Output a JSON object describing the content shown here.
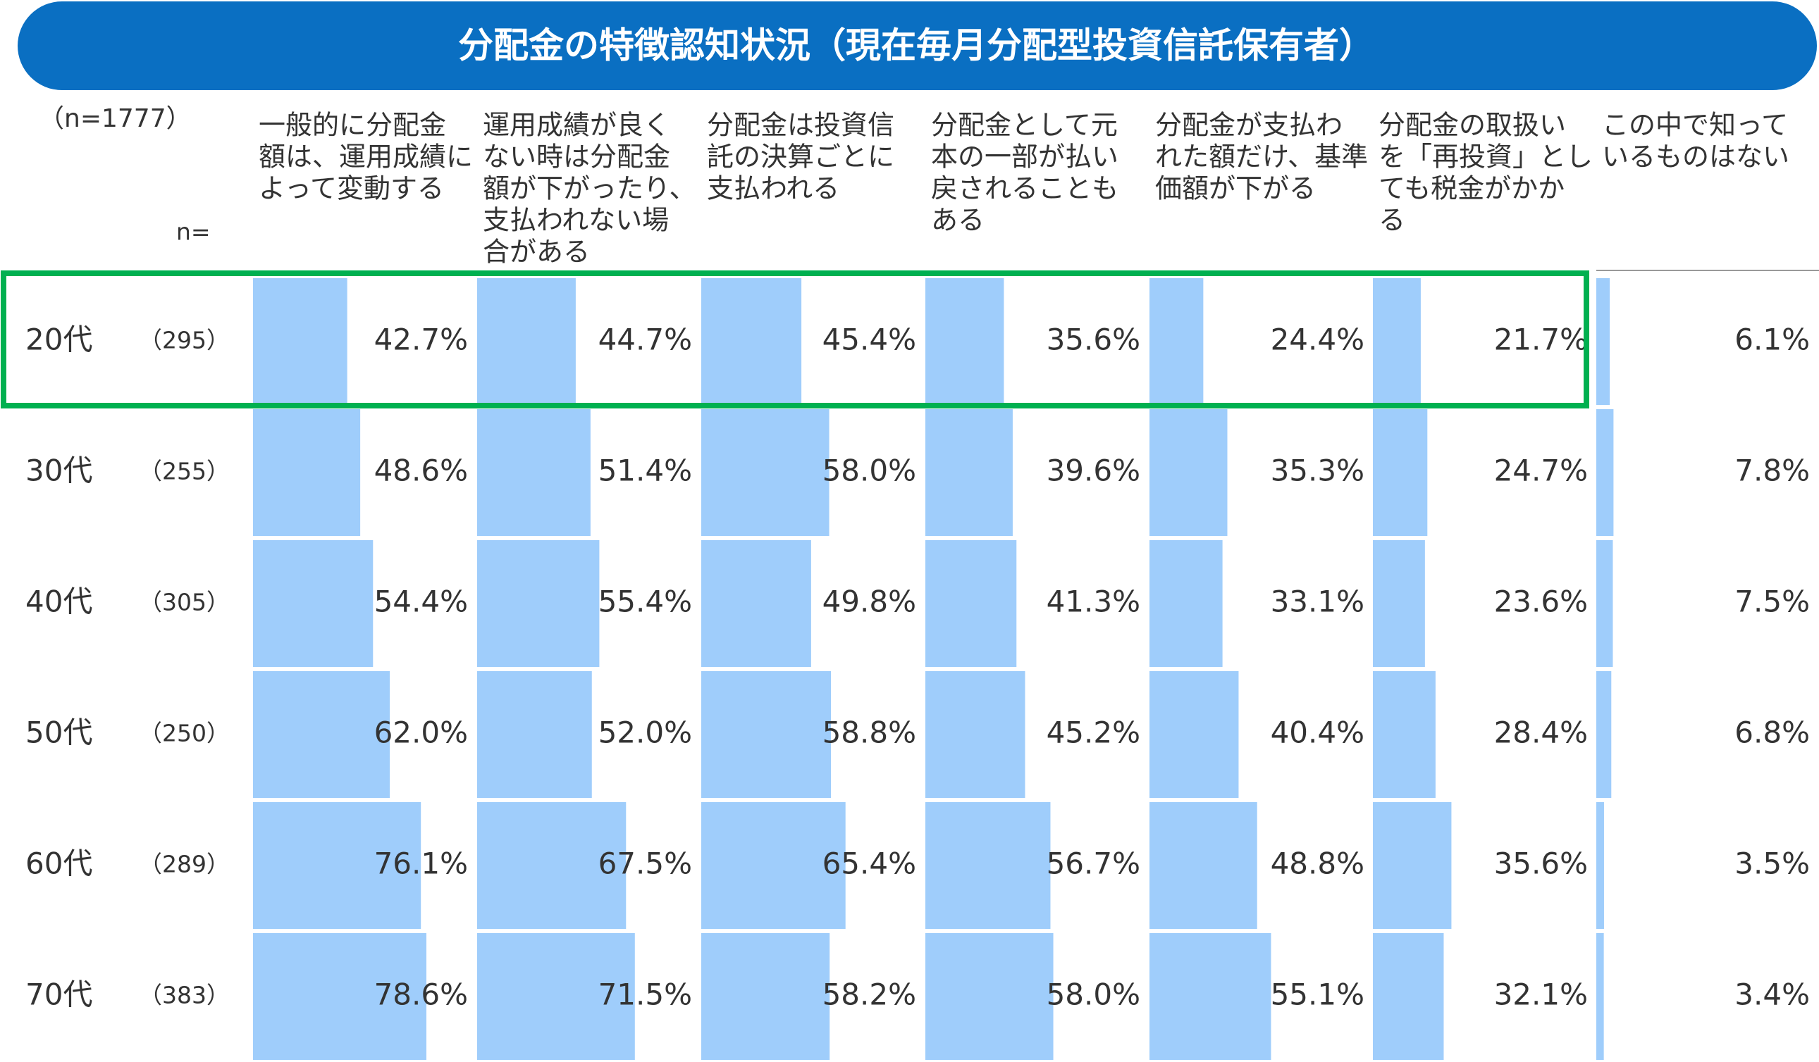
{
  "chart_data": {
    "type": "table-bar",
    "title": "分配金の特徴認知状況（現在毎月分配型投資信託保有者）",
    "sample": "（n=1777）",
    "n_header": "n=",
    "categories": [
      "20代",
      "30代",
      "40代",
      "50代",
      "60代",
      "70代"
    ],
    "n_labels": [
      "（295）",
      "（255）",
      "（305）",
      "（250）",
      "（289）",
      "（383）"
    ],
    "xlim": [
      0,
      100
    ],
    "color": "#9fcdfb",
    "highlight_row": 0,
    "highlight_color": "#00b050",
    "series": [
      {
        "header": [
          "一般的に分配金",
          "額は、運用成績に",
          "よって変動する"
        ],
        "values": [
          42.7,
          48.6,
          54.4,
          62.0,
          76.1,
          78.6
        ],
        "value_labels": [
          "42.7%",
          "48.6%",
          "54.4%",
          "62.0%",
          "76.1%",
          "78.6%"
        ]
      },
      {
        "header": [
          "運用成績が良く",
          "ない時は分配金",
          "額が下がったり、",
          "支払われない場",
          "合がある"
        ],
        "values": [
          44.7,
          51.4,
          55.4,
          52.0,
          67.5,
          71.5
        ],
        "value_labels": [
          "44.7%",
          "51.4%",
          "55.4%",
          "52.0%",
          "67.5%",
          "71.5%"
        ]
      },
      {
        "header": [
          "分配金は投資信",
          "託の決算ごとに",
          "支払われる"
        ],
        "values": [
          45.4,
          58.0,
          49.8,
          58.8,
          65.4,
          58.2
        ],
        "value_labels": [
          "45.4%",
          "58.0%",
          "49.8%",
          "58.8%",
          "65.4%",
          "58.2%"
        ]
      },
      {
        "header": [
          "分配金として元",
          "本の一部が払い",
          "戻されることも",
          "ある"
        ],
        "values": [
          35.6,
          39.6,
          41.3,
          45.2,
          56.7,
          58.0
        ],
        "value_labels": [
          "35.6%",
          "39.6%",
          "41.3%",
          "45.2%",
          "56.7%",
          "58.0%"
        ]
      },
      {
        "header": [
          "分配金が支払わ",
          "れた額だけ、基準",
          "価額が下がる"
        ],
        "values": [
          24.4,
          35.3,
          33.1,
          40.4,
          48.8,
          55.1
        ],
        "value_labels": [
          "24.4%",
          "35.3%",
          "33.1%",
          "40.4%",
          "48.8%",
          "55.1%"
        ]
      },
      {
        "header": [
          "分配金の取扱い",
          "を「再投資」とし",
          "ても税金がかか",
          "る"
        ],
        "values": [
          21.7,
          24.7,
          23.6,
          28.4,
          35.6,
          32.1
        ],
        "value_labels": [
          "21.7%",
          "24.7%",
          "23.6%",
          "28.4%",
          "35.6%",
          "32.1%"
        ]
      },
      {
        "header": [
          "この中で知って",
          "いるものはない"
        ],
        "values": [
          6.1,
          7.8,
          7.5,
          6.8,
          3.5,
          3.4
        ],
        "value_labels": [
          "6.1%",
          "7.8%",
          "7.5%",
          "6.8%",
          "3.5%",
          "3.4%"
        ]
      }
    ]
  }
}
